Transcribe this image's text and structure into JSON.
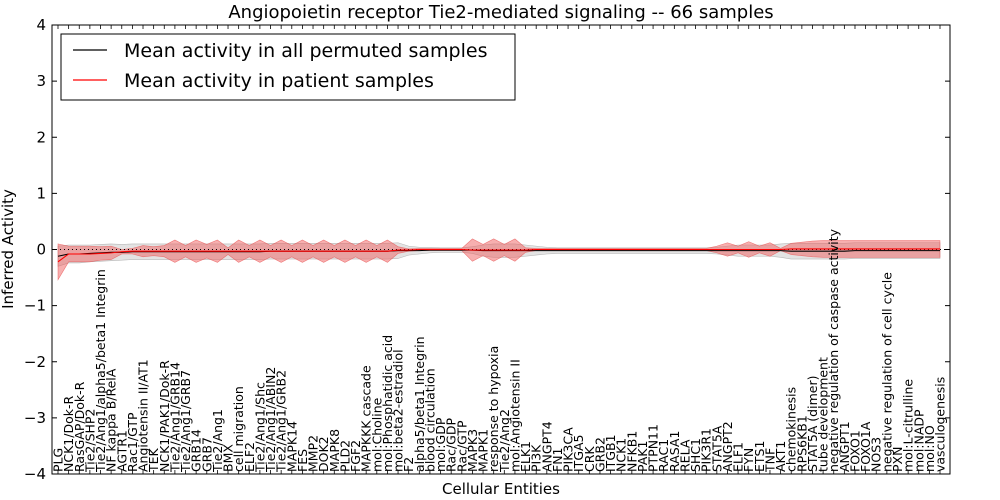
{
  "chart_data": {
    "type": "line",
    "title": "Angiopoietin receptor Tie2-mediated signaling -- 66 samples",
    "xlabel": "Cellular Entities",
    "ylabel": "Inferred Activity",
    "ylim": [
      -4,
      4
    ],
    "yticks": [
      "−4",
      "−3",
      "−2",
      "−1",
      "0",
      "1",
      "2",
      "3",
      "4"
    ],
    "ytick_values": [
      -4,
      -3,
      -2,
      -1,
      0,
      1,
      2,
      3,
      4
    ],
    "legend_position": "top-left",
    "categories": [
      "PLG",
      "NCK1/Dok-R",
      "RasGAP/Dok-R",
      "Tie2/SHP2",
      "Tie2/Ang1/alpha5/beta1 Integrin",
      "NF kappa B/RelA",
      "AGTR1",
      "Rac1/GTP",
      "Angiotensin II/AT1",
      "TEK",
      "NCK1/PAK1/Dok-R",
      "Tie2/Ang1/GRB14",
      "Tie2/Ang1/GRB7",
      "GRB14",
      "GRB7",
      "Tie2/Ang1",
      "BMX",
      "cell migration",
      "ELF2",
      "Tie2/Ang1/Shc",
      "Tie2/Ang1/ABIN2",
      "Tie2/Ang1/GRB2",
      "MAPK14",
      "FES",
      "MMP2",
      "DOK2",
      "MAPK8",
      "PLD2",
      "FGF2",
      "MAPKKK cascade",
      "mol:Choline",
      "mol:Phosphatidic acid",
      "mol:beta2-estradiol",
      "F2",
      "alpha5/beta1 Integrin",
      "blood circulation",
      "mol:GDP",
      "Rac/GDP",
      "Rac/GTP",
      "MAPK3",
      "MAPK1",
      "response to hypoxia",
      "Tie2/Ang2",
      "mol:Angiotensin II",
      "ELK1",
      "PI3K",
      "ANGPT4",
      "FN1",
      "PIK3CA",
      "ITGA5",
      "CRK",
      "GRB2",
      "ITGB1",
      "NCK1",
      "NFKB1",
      "PAK1",
      "PTPN11",
      "RAC1",
      "RASA1",
      "RELA",
      "SHC1",
      "PIK3R1",
      "STAT5A",
      "ANGPT2",
      "ELF1",
      "FYN",
      "ETS1",
      "TNF",
      "AKT1",
      "chemokinesis",
      "RPS6KB1",
      "STAT5A (dimer)",
      "tube development",
      "negative regulation of caspase activity",
      "ANGPT1",
      "FOXO1",
      "FOXO1A",
      "NOS3",
      "negative regulation of cell cycle",
      "PXN",
      "mol:L-citrulline",
      "mol:NADP",
      "mol:NO",
      "vasculogenesis"
    ],
    "series": [
      {
        "name": "Mean activity in all permuted samples",
        "color": "#000000",
        "values": [
          -0.12,
          -0.08,
          -0.08,
          -0.07,
          -0.06,
          -0.05,
          -0.05,
          -0.04,
          -0.04,
          -0.04,
          -0.04,
          -0.04,
          -0.04,
          -0.04,
          -0.04,
          -0.04,
          -0.04,
          -0.04,
          -0.04,
          -0.04,
          -0.03,
          -0.03,
          -0.03,
          -0.03,
          -0.03,
          -0.03,
          -0.03,
          -0.03,
          -0.03,
          -0.03,
          -0.03,
          -0.03,
          -0.02,
          -0.02,
          -0.02,
          -0.01,
          -0.01,
          -0.01,
          -0.01,
          -0.01,
          -0.02,
          -0.02,
          -0.02,
          -0.02,
          -0.02,
          -0.02,
          -0.02,
          -0.02,
          -0.02,
          -0.02,
          -0.02,
          -0.02,
          -0.02,
          -0.02,
          -0.02,
          -0.02,
          -0.02,
          -0.02,
          -0.02,
          -0.02,
          -0.02,
          -0.02,
          -0.02,
          -0.02,
          -0.02,
          -0.02,
          -0.02,
          -0.02,
          -0.02,
          -0.03,
          -0.03,
          -0.03,
          -0.03,
          -0.03,
          -0.03,
          -0.02,
          -0.02,
          -0.02,
          -0.02,
          -0.02,
          -0.02,
          -0.02,
          -0.02,
          -0.02
        ],
        "band": [
          0.18,
          0.16,
          0.16,
          0.15,
          0.15,
          0.15,
          0.14,
          0.14,
          0.14,
          0.14,
          0.14,
          0.14,
          0.14,
          0.14,
          0.14,
          0.14,
          0.14,
          0.14,
          0.14,
          0.14,
          0.14,
          0.14,
          0.14,
          0.14,
          0.14,
          0.14,
          0.14,
          0.14,
          0.14,
          0.14,
          0.14,
          0.14,
          0.14,
          0.08,
          0.06,
          0.05,
          0.04,
          0.04,
          0.04,
          0.06,
          0.1,
          0.12,
          0.12,
          0.12,
          0.1,
          0.08,
          0.06,
          0.05,
          0.05,
          0.05,
          0.05,
          0.05,
          0.05,
          0.05,
          0.05,
          0.05,
          0.05,
          0.05,
          0.05,
          0.05,
          0.05,
          0.05,
          0.06,
          0.08,
          0.1,
          0.1,
          0.1,
          0.1,
          0.12,
          0.14,
          0.14,
          0.14,
          0.14,
          0.14,
          0.14,
          0.14,
          0.14,
          0.14,
          0.14,
          0.14,
          0.14,
          0.14,
          0.14,
          0.14
        ]
      },
      {
        "name": "Mean activity in patient samples",
        "color": "#ff0000",
        "values": [
          -0.22,
          -0.08,
          -0.08,
          -0.08,
          -0.07,
          -0.06,
          -0.04,
          -0.03,
          -0.03,
          -0.03,
          -0.03,
          -0.03,
          -0.03,
          -0.03,
          -0.03,
          -0.03,
          -0.03,
          -0.03,
          -0.03,
          -0.03,
          -0.03,
          -0.03,
          -0.03,
          -0.03,
          -0.03,
          -0.03,
          -0.03,
          -0.03,
          -0.03,
          -0.03,
          -0.03,
          -0.03,
          -0.01,
          -0.01,
          0.0,
          0.0,
          0.0,
          0.0,
          0.0,
          -0.01,
          -0.01,
          -0.01,
          -0.01,
          -0.01,
          -0.01,
          0.0,
          0.0,
          0.0,
          0.0,
          0.0,
          0.0,
          0.0,
          0.0,
          0.0,
          0.0,
          0.0,
          0.0,
          0.0,
          0.0,
          0.0,
          0.0,
          0.0,
          0.0,
          0.0,
          0.0,
          0.0,
          0.0,
          0.0,
          0.0,
          0.01,
          0.01,
          0.01,
          0.01,
          0.01,
          0.01,
          0.01,
          0.01,
          0.01,
          0.01,
          0.01,
          0.01,
          0.01,
          0.01,
          0.01
        ],
        "band": [
          0.32,
          0.14,
          0.14,
          0.14,
          0.12,
          0.12,
          0.04,
          0.05,
          0.1,
          0.08,
          0.1,
          0.2,
          0.1,
          0.2,
          0.12,
          0.2,
          0.06,
          0.2,
          0.1,
          0.2,
          0.1,
          0.2,
          0.1,
          0.2,
          0.1,
          0.2,
          0.1,
          0.2,
          0.1,
          0.2,
          0.1,
          0.2,
          0.06,
          0.02,
          0.02,
          0.02,
          0.02,
          0.02,
          0.02,
          0.2,
          0.1,
          0.2,
          0.1,
          0.2,
          0.04,
          0.02,
          0.02,
          0.02,
          0.02,
          0.02,
          0.02,
          0.02,
          0.02,
          0.02,
          0.02,
          0.02,
          0.02,
          0.02,
          0.02,
          0.02,
          0.02,
          0.02,
          0.06,
          0.12,
          0.06,
          0.14,
          0.06,
          0.12,
          0.02,
          0.1,
          0.12,
          0.14,
          0.15,
          0.15,
          0.15,
          0.15,
          0.15,
          0.15,
          0.15,
          0.15,
          0.15,
          0.15,
          0.15,
          0.15
        ]
      }
    ]
  }
}
